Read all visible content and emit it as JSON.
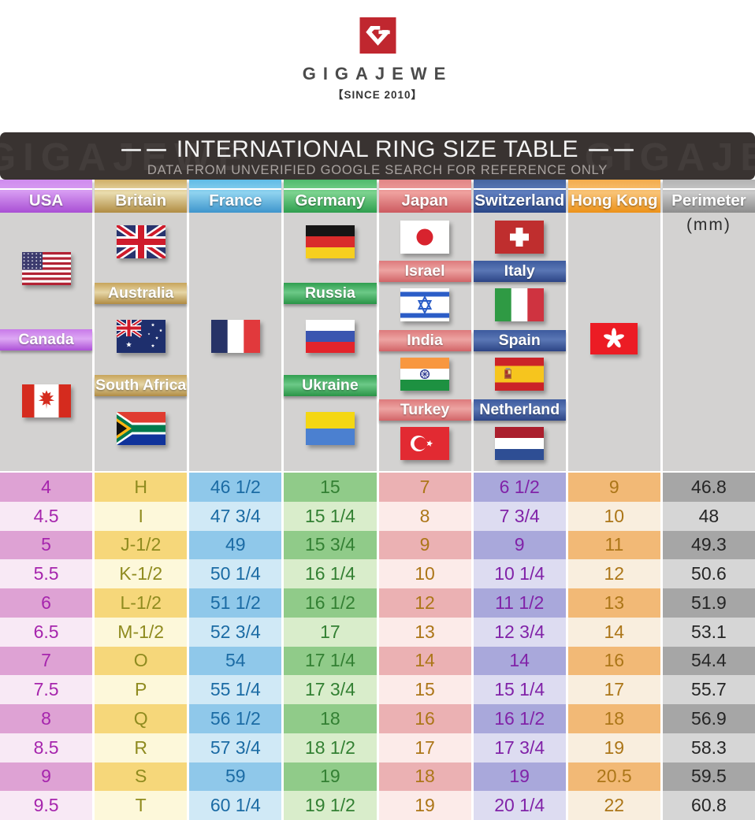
{
  "logo": {
    "brand": "GIGAJEWE",
    "since": "【SINCE 2010】"
  },
  "banner": {
    "title": "INTERNATIONAL RING SIZE TABLE",
    "subtitle": "DATA FROM UNVERIFIED GOOGLE SEARCH FOR REFERENCE ONLY",
    "watermark": "GIGAJEWE"
  },
  "columns": [
    {
      "key": "usa",
      "header": "USA",
      "labels": [
        "Canada"
      ],
      "flags": [
        "usa",
        "canada"
      ],
      "accent": "#b45ad8"
    },
    {
      "key": "britain",
      "header": "Britain",
      "labels": [
        "Australia",
        "South Africa"
      ],
      "flags": [
        "uk",
        "australia",
        "south-africa"
      ],
      "accent": "#c9a85c"
    },
    {
      "key": "france",
      "header": "France",
      "labels": [],
      "flags": [
        "france"
      ],
      "accent": "#3f9ed6"
    },
    {
      "key": "germany",
      "header": "Germany",
      "labels": [
        "Russia",
        "Ukraine"
      ],
      "flags": [
        "germany",
        "russia",
        "ukraine"
      ],
      "accent": "#33a355"
    },
    {
      "key": "japan",
      "header": "Japan",
      "labels": [
        "Israel",
        "India",
        "Turkey"
      ],
      "flags": [
        "japan",
        "israel",
        "india",
        "turkey"
      ],
      "accent": "#d56a6c"
    },
    {
      "key": "switzerland",
      "header": "Switzerland",
      "labels": [
        "Italy",
        "Spain",
        "Netherland"
      ],
      "flags": [
        "switzerland",
        "italy",
        "spain",
        "netherlands"
      ],
      "accent": "#2f4d8f"
    },
    {
      "key": "hongkong",
      "header": "Hong Kong",
      "labels": [],
      "flags": [
        "hong-kong"
      ],
      "accent": "#ef9a27"
    },
    {
      "key": "perimeter",
      "header": "Perimeter",
      "unit": "(mm)",
      "labels": [],
      "flags": [],
      "accent": "#9a9a9a"
    }
  ],
  "table": {
    "headers": [
      "USA",
      "Britain",
      "France",
      "Germany",
      "Japan",
      "Switzerland",
      "Hong Kong",
      "Perimeter (mm)"
    ],
    "rows": [
      [
        "4",
        "H",
        "46 1/2",
        "15",
        "7",
        "6 1/2",
        "9",
        "46.8"
      ],
      [
        "4.5",
        "I",
        "47 3/4",
        "15 1/4",
        "8",
        "7 3/4",
        "10",
        "48"
      ],
      [
        "5",
        "J-1/2",
        "49",
        "15 3/4",
        "9",
        "9",
        "11",
        "49.3"
      ],
      [
        "5.5",
        "K-1/2",
        "50 1/4",
        "16 1/4",
        "10",
        "10 1/4",
        "12",
        "50.6"
      ],
      [
        "6",
        "L-1/2",
        "51 1/2",
        "16 1/2",
        "12",
        "11 1/2",
        "13",
        "51.9"
      ],
      [
        "6.5",
        "M-1/2",
        "52 3/4",
        "17",
        "13",
        "12 3/4",
        "14",
        "53.1"
      ],
      [
        "7",
        "O",
        "54",
        "17 1/4",
        "14",
        "14",
        "16",
        "54.4"
      ],
      [
        "7.5",
        "P",
        "55 1/4",
        "17 3/4",
        "15",
        "15 1/4",
        "17",
        "55.7"
      ],
      [
        "8",
        "Q",
        "56 1/2",
        "18",
        "16",
        "16 1/2",
        "18",
        "56.9"
      ],
      [
        "8.5",
        "R",
        "57 3/4",
        "18 1/2",
        "17",
        "17 3/4",
        "19",
        "58.3"
      ],
      [
        "9",
        "S",
        "59",
        "19",
        "18",
        "19",
        "20.5",
        "59.5"
      ],
      [
        "9.5",
        "T",
        "60 1/4",
        "19 1/2",
        "19",
        "20 1/4",
        "22",
        "60.8"
      ]
    ]
  }
}
